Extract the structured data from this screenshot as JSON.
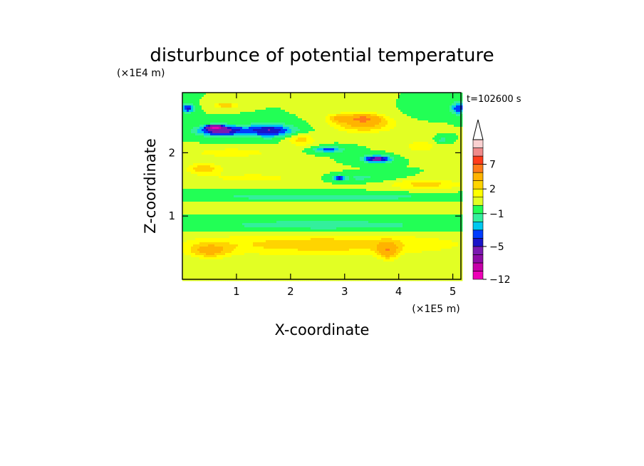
{
  "chart_data": {
    "type": "heatmap",
    "title": "disturbunce of potential temperature",
    "xlabel": "X-coordinate",
    "ylabel": "Z-coordinate",
    "x_scale_label": "(×1E5 m)",
    "y_scale_label": "(×1E4 m)",
    "time_label": "t=102600 s",
    "xlim": [
      0,
      5.15
    ],
    "ylim": [
      0,
      2.95
    ],
    "x_ticks": [
      1,
      2,
      3,
      4,
      5
    ],
    "y_ticks": [
      1,
      2
    ],
    "colorbar": {
      "levels": [
        -12,
        -11,
        -9,
        -7,
        -5,
        -4,
        -3,
        -2,
        -1,
        0,
        1,
        2,
        3,
        5,
        7,
        9,
        11
      ],
      "labeled_ticks": [
        -12,
        -5,
        -1,
        2,
        7
      ],
      "extend": "max",
      "colors": [
        "#ee00b6",
        "#c600a8",
        "#8e0ca6",
        "#7a1ab0",
        "#1a14c8",
        "#003cff",
        "#00c8f0",
        "#33ef9c",
        "#22ff55",
        "#e2ff24",
        "#ffff00",
        "#ffd400",
        "#ffb300",
        "#ff7a1a",
        "#ff3c1c",
        "#ef8a8a",
        "#fad0d0"
      ]
    },
    "field_blobs": [
      {
        "x": 2.6,
        "z": 0.55,
        "w": 5.6,
        "h": 0.38,
        "v": 2.6
      },
      {
        "x": 2.6,
        "z": 0.05,
        "w": 5.6,
        "h": 0.12,
        "v": 0.9
      },
      {
        "x": 0.5,
        "z": 0.45,
        "w": 0.8,
        "h": 0.25,
        "v": 3.0
      },
      {
        "x": 3.8,
        "z": 0.45,
        "w": 0.4,
        "h": 0.3,
        "v": 3.5
      },
      {
        "x": 2.6,
        "z": 0.85,
        "w": 5.4,
        "h": 0.22,
        "v": -1.6
      },
      {
        "x": 2.6,
        "z": 1.15,
        "w": 5.6,
        "h": 0.2,
        "v": 0.6
      },
      {
        "x": 2.6,
        "z": 1.3,
        "w": 5.6,
        "h": 0.14,
        "v": -1.6
      },
      {
        "x": 1.3,
        "z": 1.6,
        "w": 2.4,
        "h": 0.22,
        "v": 1.3
      },
      {
        "x": 0.4,
        "z": 1.75,
        "w": 0.7,
        "h": 0.18,
        "v": 2.8
      },
      {
        "x": 4.5,
        "z": 1.5,
        "w": 1.5,
        "h": 0.18,
        "v": 2.4
      },
      {
        "x": 3.3,
        "z": 1.6,
        "w": 1.5,
        "h": 0.14,
        "v": -1.2
      },
      {
        "x": 2.9,
        "z": 1.6,
        "w": 0.2,
        "h": 0.08,
        "v": -4.5
      },
      {
        "x": 0.9,
        "z": 2.0,
        "w": 1.6,
        "h": 0.16,
        "v": 1.8
      },
      {
        "x": 1.6,
        "z": 2.35,
        "w": 1.0,
        "h": 0.22,
        "v": -5.0
      },
      {
        "x": 0.7,
        "z": 2.35,
        "w": 0.9,
        "h": 0.18,
        "v": -6.0
      },
      {
        "x": 0.6,
        "z": 2.4,
        "w": 0.3,
        "h": 0.07,
        "v": -8.0
      },
      {
        "x": 0.1,
        "z": 2.7,
        "w": 0.25,
        "h": 0.15,
        "v": -4.5
      },
      {
        "x": 0.8,
        "z": 2.75,
        "w": 0.5,
        "h": 0.1,
        "v": 2.8
      },
      {
        "x": 3.35,
        "z": 2.45,
        "w": 1.2,
        "h": 0.28,
        "v": 3.5
      },
      {
        "x": 3.35,
        "z": 2.55,
        "w": 0.7,
        "h": 0.16,
        "v": 3.5
      },
      {
        "x": 2.9,
        "z": 2.55,
        "w": 0.5,
        "h": 0.14,
        "v": 2.5
      },
      {
        "x": 3.6,
        "z": 1.9,
        "w": 0.55,
        "h": 0.12,
        "v": -6.0
      },
      {
        "x": 2.7,
        "z": 2.05,
        "w": 0.6,
        "h": 0.1,
        "v": -3.5
      },
      {
        "x": 2.2,
        "z": 2.2,
        "w": 0.55,
        "h": 0.2,
        "v": 2.5
      },
      {
        "x": 4.4,
        "z": 2.1,
        "w": 0.8,
        "h": 0.25,
        "v": 1.5
      },
      {
        "x": 5.1,
        "z": 2.7,
        "w": 0.3,
        "h": 0.2,
        "v": -4.0
      },
      {
        "x": 4.5,
        "z": 2.65,
        "w": 0.6,
        "h": 0.18,
        "v": -1.0
      },
      {
        "x": 4.8,
        "z": 2.2,
        "w": 0.3,
        "h": 0.12,
        "v": -1.5
      }
    ]
  }
}
